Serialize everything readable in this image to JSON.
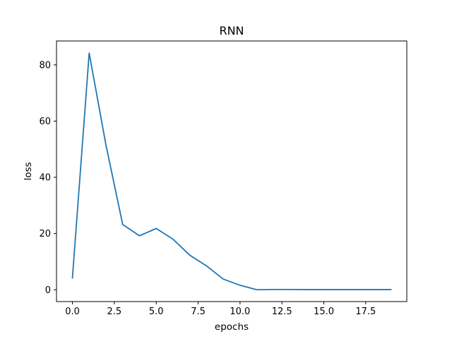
{
  "chart_data": {
    "type": "line",
    "title": "RNN",
    "xlabel": "epochs",
    "ylabel": "loss",
    "xlim": [
      -0.95,
      19.95
    ],
    "ylim": [
      -4.2,
      88.5
    ],
    "x_ticks": [
      0.0,
      2.5,
      5.0,
      7.5,
      10.0,
      12.5,
      15.0,
      17.5
    ],
    "x_tick_labels": [
      "0.0",
      "2.5",
      "5.0",
      "7.5",
      "10.0",
      "12.5",
      "15.0",
      "17.5"
    ],
    "y_ticks": [
      0,
      20,
      40,
      60,
      80
    ],
    "y_tick_labels": [
      "0",
      "20",
      "40",
      "60",
      "80"
    ],
    "grid": false,
    "series": [
      {
        "color": "#1f77b4",
        "x": [
          0,
          1,
          2,
          3,
          4,
          5,
          6,
          7,
          8,
          9,
          10,
          11,
          12,
          13,
          14,
          15,
          16,
          17,
          18,
          19
        ],
        "values": [
          4.2,
          84.2,
          51.5,
          23.2,
          19.2,
          21.8,
          18.0,
          12.3,
          8.5,
          3.8,
          1.6,
          0.0,
          0.1,
          0.1,
          0.05,
          0.05,
          0.05,
          0.05,
          0.05,
          0.05
        ]
      }
    ]
  }
}
